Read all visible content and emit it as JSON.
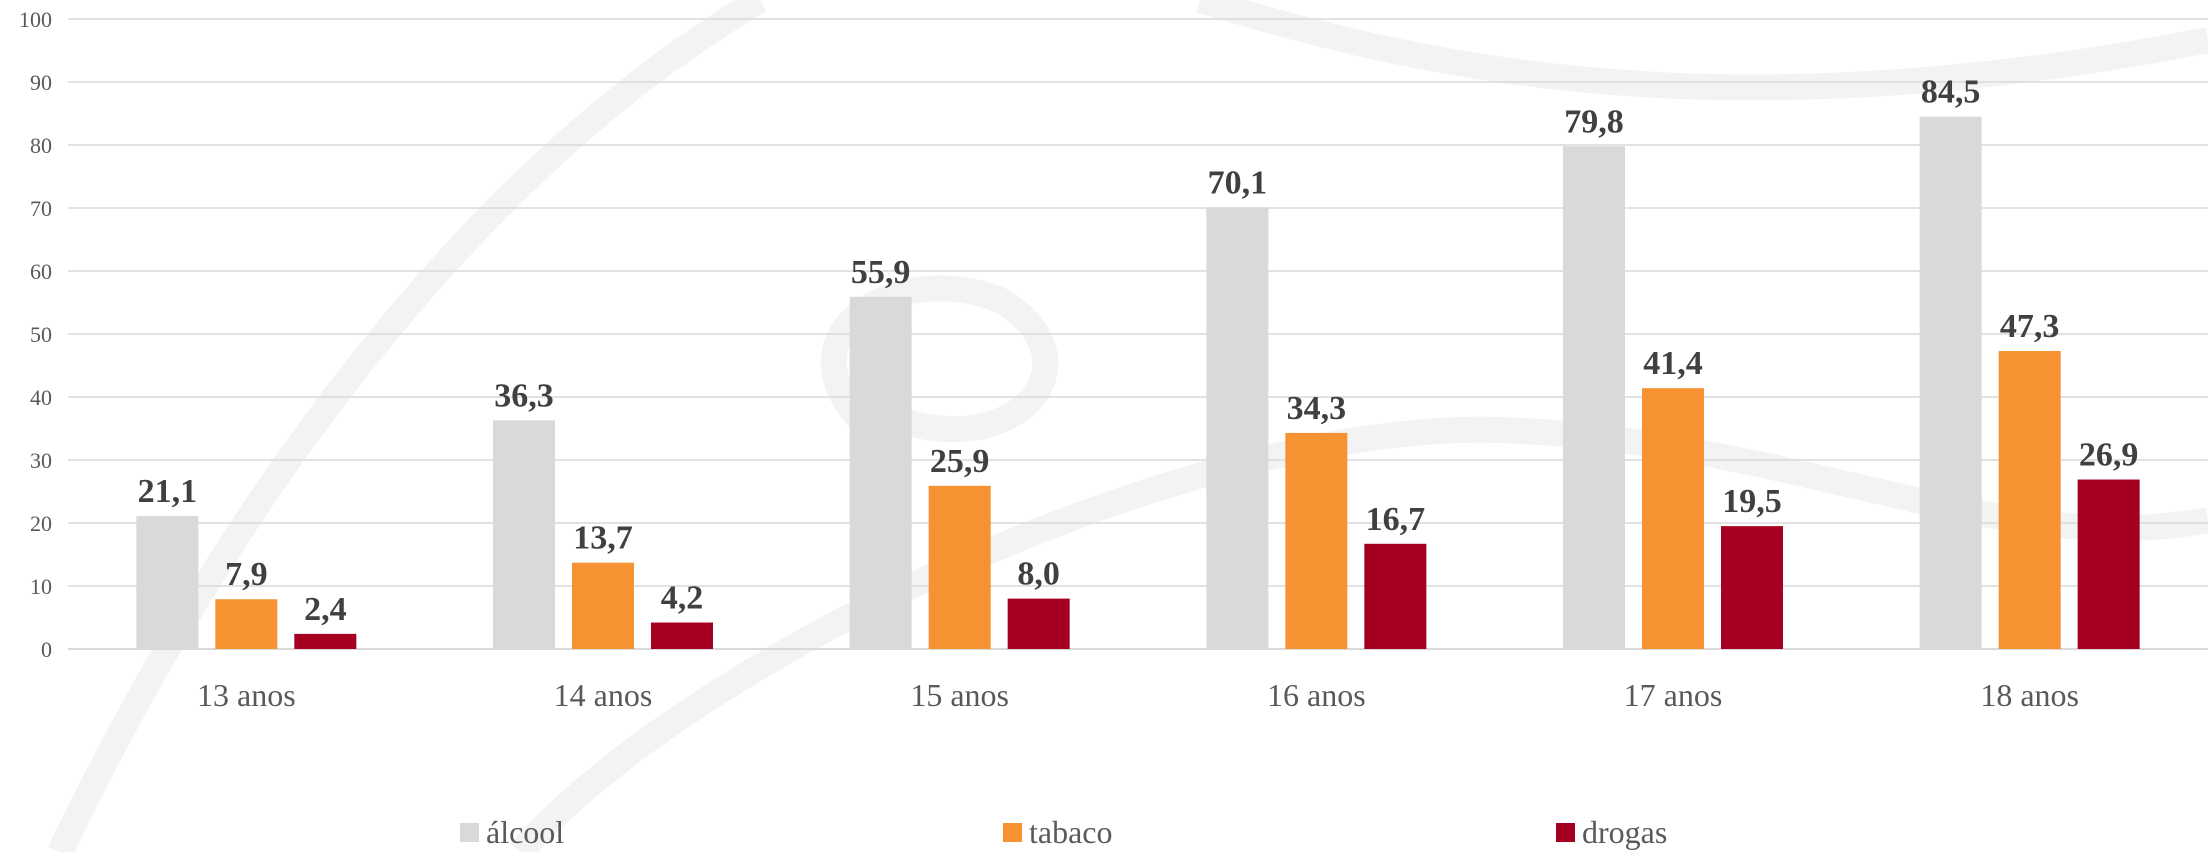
{
  "chart_data": {
    "type": "bar",
    "categories": [
      "13 anos",
      "14 anos",
      "15 anos",
      "16 anos",
      "17 anos",
      "18 anos"
    ],
    "series": [
      {
        "name": "álcool",
        "color": "#d9d9d9",
        "values": [
          21.1,
          36.3,
          55.9,
          70.1,
          79.8,
          84.5
        ],
        "labels": [
          "21,1",
          "36,3",
          "55,9",
          "70,1",
          "79,8",
          "84,5"
        ]
      },
      {
        "name": "tabaco",
        "color": "#f79232",
        "values": [
          7.9,
          13.7,
          25.9,
          34.3,
          41.4,
          47.3
        ],
        "labels": [
          "7,9",
          "13,7",
          "25,9",
          "34,3",
          "41,4",
          "47,3"
        ]
      },
      {
        "name": "drogas",
        "color": "#a50021",
        "values": [
          2.4,
          4.2,
          8.0,
          16.7,
          19.5,
          26.9
        ],
        "labels": [
          "2,4",
          "4,2",
          "8,0",
          "16,7",
          "19,5",
          "26,9"
        ]
      }
    ],
    "ylim": [
      0,
      100
    ],
    "yticks": [
      0,
      10,
      20,
      30,
      40,
      50,
      60,
      70,
      80,
      90,
      100
    ],
    "grid": true,
    "legend_position": "bottom"
  }
}
